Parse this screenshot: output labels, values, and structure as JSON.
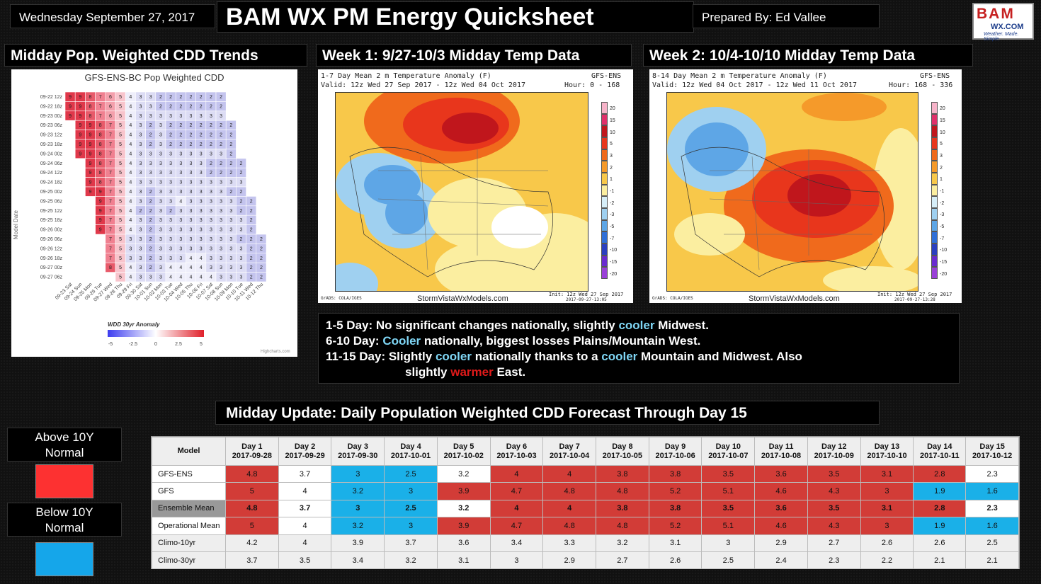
{
  "header": {
    "date": "Wednesday September 27, 2017",
    "title": "BAM WX PM Energy Quicksheet",
    "prepared_by": "Prepared By: Ed Vallee",
    "logo": {
      "line1": "BAM",
      "line2": "WX.COM",
      "line3": "Weather. Made. Simple."
    }
  },
  "sections": {
    "cdd_trends": "Midday Pop. Weighted CDD Trends",
    "week1": "Week 1: 9/27-10/3 Midday Temp Data",
    "week2": "Week 2: 10/4-10/10 Midday Temp Data",
    "table_title": "Midday Update: Daily Population Weighted CDD Forecast Through Day 15"
  },
  "cdd_chart": {
    "title": "GFS-ENS-BC Pop Weighted CDD",
    "ylabel": "Model Date",
    "legend_title": "WDD 30yr Anomaly",
    "legend_ticks": [
      "-5",
      "-2.5",
      "0",
      "2.5",
      "5"
    ],
    "credit": "Highcharts.com",
    "rows": [
      "09-22 12z",
      "09-22 18z",
      "09-23 00z",
      "09-23 06z",
      "09-23 12z",
      "09-23 18z",
      "09-24 00z",
      "09-24 06z",
      "09-24 12z",
      "09-24 18z",
      "09-25 00z",
      "09-25 06z",
      "09-25 12z",
      "09-25 18z",
      "09-26 00z",
      "09-26 06z",
      "09-26 12z",
      "09-26 18z",
      "09-27 00z",
      "09-27 06z"
    ],
    "cols": [
      "09-23 Sat",
      "09-24 Sun",
      "09-25 Mon",
      "09-26 Tue",
      "09-27 Wed",
      "09-28 Thu",
      "09-29 Fri",
      "09-30 Sat",
      "10-01 Sun",
      "10-02 Mon",
      "10-03 Tue",
      "10-04 Wed",
      "10-05 Thu",
      "10-06 Fri",
      "10-07 Sat",
      "10-08 Sun",
      "10-09 Mon",
      "10-10 Tue",
      "10-11 Wed",
      "10-12 Thu"
    ],
    "values": [
      [
        9,
        9,
        8,
        7,
        6,
        5,
        4,
        3,
        3,
        2,
        2,
        2,
        2,
        2,
        2,
        2
      ],
      [
        9,
        9,
        8,
        7,
        6,
        5,
        4,
        3,
        3,
        2,
        2,
        2,
        2,
        2,
        2,
        2
      ],
      [
        9,
        9,
        8,
        7,
        6,
        5,
        4,
        3,
        3,
        3,
        3,
        3,
        3,
        3,
        3,
        3
      ],
      [
        null,
        9,
        9,
        8,
        7,
        5,
        4,
        3,
        2,
        3,
        2,
        2,
        2,
        2,
        2,
        2,
        2
      ],
      [
        null,
        9,
        9,
        8,
        7,
        5,
        4,
        3,
        2,
        3,
        2,
        2,
        2,
        2,
        2,
        2,
        2
      ],
      [
        null,
        9,
        9,
        8,
        7,
        5,
        4,
        3,
        2,
        3,
        2,
        2,
        2,
        2,
        2,
        2,
        2
      ],
      [
        null,
        9,
        9,
        8,
        7,
        5,
        4,
        3,
        3,
        3,
        3,
        3,
        3,
        3,
        3,
        3,
        2
      ],
      [
        null,
        null,
        9,
        8,
        7,
        5,
        4,
        3,
        3,
        3,
        3,
        3,
        3,
        3,
        2,
        2,
        2,
        2
      ],
      [
        null,
        null,
        9,
        8,
        7,
        5,
        4,
        3,
        3,
        3,
        3,
        3,
        3,
        3,
        2,
        2,
        2,
        2
      ],
      [
        null,
        null,
        9,
        8,
        7,
        5,
        4,
        3,
        3,
        3,
        3,
        3,
        3,
        3,
        3,
        3,
        3,
        3
      ],
      [
        null,
        null,
        9,
        9,
        7,
        5,
        4,
        3,
        2,
        3,
        3,
        3,
        3,
        3,
        3,
        3,
        2,
        2
      ],
      [
        null,
        null,
        null,
        9,
        7,
        5,
        4,
        3,
        2,
        3,
        3,
        4,
        3,
        3,
        3,
        3,
        3,
        2,
        2
      ],
      [
        null,
        null,
        null,
        9,
        7,
        5,
        4,
        2,
        2,
        3,
        2,
        3,
        3,
        3,
        3,
        3,
        3,
        2,
        2
      ],
      [
        null,
        null,
        null,
        9,
        7,
        5,
        4,
        3,
        2,
        3,
        3,
        3,
        3,
        3,
        3,
        3,
        3,
        3,
        2
      ],
      [
        null,
        null,
        null,
        9,
        7,
        5,
        4,
        3,
        2,
        3,
        3,
        3,
        3,
        3,
        3,
        3,
        3,
        3,
        2
      ],
      [
        null,
        null,
        null,
        null,
        7,
        5,
        3,
        3,
        2,
        3,
        3,
        3,
        3,
        3,
        3,
        3,
        3,
        2,
        2,
        2
      ],
      [
        null,
        null,
        null,
        null,
        7,
        5,
        3,
        3,
        2,
        3,
        3,
        3,
        3,
        3,
        3,
        3,
        3,
        3,
        2,
        2
      ],
      [
        null,
        null,
        null,
        null,
        7,
        5,
        3,
        3,
        2,
        3,
        3,
        3,
        4,
        4,
        3,
        3,
        3,
        3,
        2,
        2
      ],
      [
        null,
        null,
        null,
        null,
        8,
        5,
        4,
        3,
        2,
        3,
        4,
        4,
        4,
        4,
        3,
        3,
        3,
        3,
        2,
        2
      ],
      [
        null,
        null,
        null,
        null,
        null,
        5,
        4,
        3,
        3,
        3,
        4,
        4,
        4,
        4,
        4,
        3,
        3,
        3,
        2,
        2
      ]
    ]
  },
  "maps": {
    "week1": {
      "line1": "1-7 Day Mean 2 m Temperature Anomaly (F)",
      "line1_right": "GFS-ENS",
      "line2": "Valid: 12z Wed 27 Sep 2017 - 12z Wed 04 Oct 2017",
      "line2_right": "Hour: 0 - 168",
      "footer": "StormVistaWxModels.com",
      "init": "Init: 12z Wed 27 Sep 2017",
      "grads": "GrADS: COLA/IGES",
      "stamp": "2017-09-27-13:05"
    },
    "week2": {
      "line1": "8-14 Day Mean 2 m Temperature Anomaly (F)",
      "line1_right": "GFS-ENS",
      "line2": "Valid: 12z Wed 04 Oct 2017 - 12z Wed 11 Oct 2017",
      "line2_right": "Hour: 168 - 336",
      "footer": "StormVistaWxModels.com",
      "init": "Init: 12z Wed 27 Sep 2017",
      "grads": "GrADS: COLA/IGES",
      "stamp": "2017-09-27-13:28"
    },
    "scale_labels": [
      "20",
      "15",
      "10",
      "5",
      "3",
      "2",
      "1",
      "-1",
      "-2",
      "-3",
      "-5",
      "-7",
      "-10",
      "-15",
      "-20"
    ],
    "scale_colors": [
      "#f7b3c9",
      "#e0306a",
      "#c0161c",
      "#e8361c",
      "#f06a1c",
      "#f59a2a",
      "#f8c84a",
      "#fbeea0",
      "#d6eef8",
      "#9fd0f0",
      "#5ea6e6",
      "#2f6fd8",
      "#2a3fc0",
      "#6a2ad0",
      "#9a40d8"
    ]
  },
  "summary": {
    "l1_a": "1-5 Day: No significant changes nationally, slightly ",
    "l1_b": "cooler",
    "l1_c": " Midwest.",
    "l2_a": "6-10 Day: ",
    "l2_b": "Cooler",
    "l2_c": " nationally, biggest losses Plains/Mountain West.",
    "l3_a": "11-15 Day: Slightly ",
    "l3_b": "cooler",
    "l3_c": " nationally thanks to a ",
    "l3_d": "cooler",
    "l3_e": " Mountain and Midwest. Also",
    "l4_a": "slightly ",
    "l4_b": "warmer",
    "l4_c": " East."
  },
  "key": {
    "above": "Above 10Y Normal",
    "below": "Below 10Y Normal",
    "above_color": "#fd3131",
    "below_color": "#15a6ea"
  },
  "table": {
    "model_header": "Model",
    "days": [
      {
        "day": "Day 1",
        "date": "2017-09-28"
      },
      {
        "day": "Day 2",
        "date": "2017-09-29"
      },
      {
        "day": "Day 3",
        "date": "2017-09-30"
      },
      {
        "day": "Day 4",
        "date": "2017-10-01"
      },
      {
        "day": "Day 5",
        "date": "2017-10-02"
      },
      {
        "day": "Day 6",
        "date": "2017-10-03"
      },
      {
        "day": "Day 7",
        "date": "2017-10-04"
      },
      {
        "day": "Day 8",
        "date": "2017-10-05"
      },
      {
        "day": "Day 9",
        "date": "2017-10-06"
      },
      {
        "day": "Day 10",
        "date": "2017-10-07"
      },
      {
        "day": "Day 11",
        "date": "2017-10-08"
      },
      {
        "day": "Day 12",
        "date": "2017-10-09"
      },
      {
        "day": "Day 13",
        "date": "2017-10-10"
      },
      {
        "day": "Day 14",
        "date": "2017-10-11"
      },
      {
        "day": "Day 15",
        "date": "2017-10-12"
      }
    ],
    "rows": [
      {
        "model": "GFS-ENS",
        "values": [
          "4.8",
          "3.7",
          "3",
          "2.5",
          "3.2",
          "4",
          "4",
          "3.8",
          "3.8",
          "3.5",
          "3.6",
          "3.5",
          "3.1",
          "2.8",
          "2.3"
        ],
        "status": [
          "h",
          "n",
          "c",
          "c",
          "n",
          "h",
          "h",
          "h",
          "h",
          "h",
          "h",
          "h",
          "h",
          "h",
          "n"
        ]
      },
      {
        "model": "GFS",
        "values": [
          "5",
          "4",
          "3.2",
          "3",
          "3.9",
          "4.7",
          "4.8",
          "4.8",
          "5.2",
          "5.1",
          "4.6",
          "4.3",
          "3",
          "1.9",
          "1.6"
        ],
        "status": [
          "h",
          "n",
          "c",
          "c",
          "h",
          "h",
          "h",
          "h",
          "h",
          "h",
          "h",
          "h",
          "h",
          "c",
          "c"
        ]
      },
      {
        "model": "Ensemble Mean",
        "values": [
          "4.8",
          "3.7",
          "3",
          "2.5",
          "3.2",
          "4",
          "4",
          "3.8",
          "3.8",
          "3.5",
          "3.6",
          "3.5",
          "3.1",
          "2.8",
          "2.3"
        ],
        "status": [
          "h",
          "n",
          "c",
          "c",
          "n",
          "h",
          "h",
          "h",
          "h",
          "h",
          "h",
          "h",
          "h",
          "h",
          "n"
        ]
      },
      {
        "model": "Operational Mean",
        "values": [
          "5",
          "4",
          "3.2",
          "3",
          "3.9",
          "4.7",
          "4.8",
          "4.8",
          "5.2",
          "5.1",
          "4.6",
          "4.3",
          "3",
          "1.9",
          "1.6"
        ],
        "status": [
          "h",
          "n",
          "c",
          "c",
          "h",
          "h",
          "h",
          "h",
          "h",
          "h",
          "h",
          "h",
          "h",
          "c",
          "c"
        ]
      },
      {
        "model": "Climo-10yr",
        "values": [
          "4.2",
          "4",
          "3.9",
          "3.7",
          "3.6",
          "3.4",
          "3.3",
          "3.2",
          "3.1",
          "3",
          "2.9",
          "2.7",
          "2.6",
          "2.6",
          "2.5"
        ],
        "status": [
          "n",
          "n",
          "n",
          "n",
          "n",
          "n",
          "n",
          "n",
          "n",
          "n",
          "n",
          "n",
          "n",
          "n",
          "n"
        ]
      },
      {
        "model": "Climo-30yr",
        "values": [
          "3.7",
          "3.5",
          "3.4",
          "3.2",
          "3.1",
          "3",
          "2.9",
          "2.7",
          "2.6",
          "2.5",
          "2.4",
          "2.3",
          "2.2",
          "2.1",
          "2.1"
        ],
        "status": [
          "n",
          "n",
          "n",
          "n",
          "n",
          "n",
          "n",
          "n",
          "n",
          "n",
          "n",
          "n",
          "n",
          "n",
          "n"
        ]
      }
    ]
  }
}
